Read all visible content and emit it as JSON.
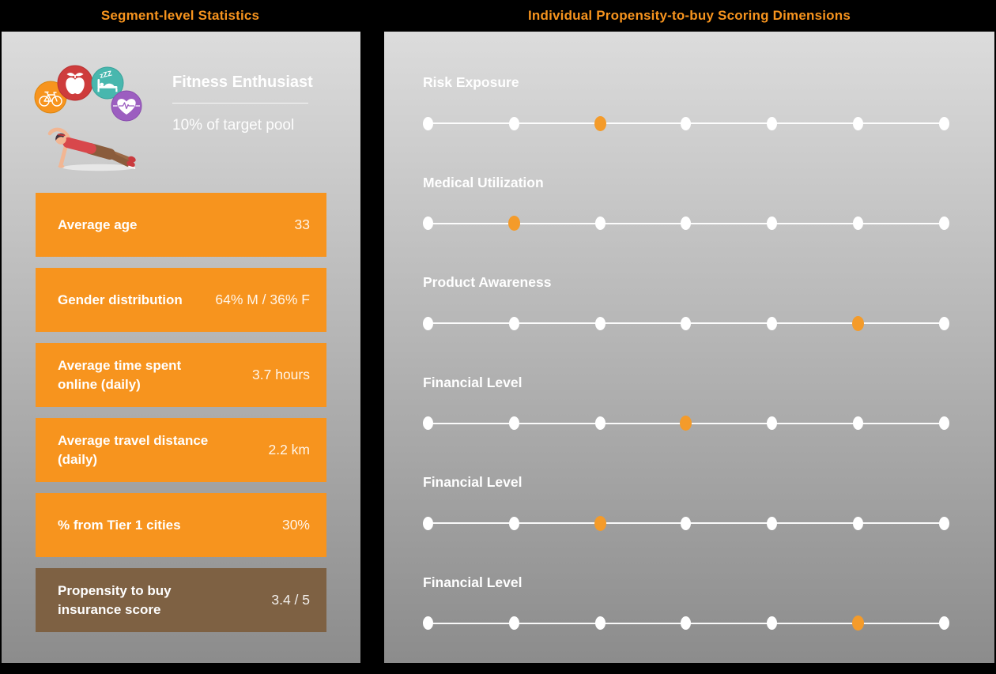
{
  "colors": {
    "accent_orange": "#F7941E",
    "dot_orange": "#F49B2A",
    "brown": "#7E6143",
    "panel_top": "#DCDCDC",
    "panel_bottom": "#8C8C8C",
    "icon_red": "#CE3C3C",
    "icon_teal": "#48B7AE",
    "icon_purple": "#9C5EC0"
  },
  "left_panel": {
    "header": "Segment-level Statistics",
    "persona": {
      "title": "Fitness Enthusiast",
      "subtitle": "10% of target pool",
      "sleep_text": "zZZ",
      "icons": [
        "bicycle-icon",
        "apple-icon",
        "sleep-icon",
        "heart-pulse-icon",
        "plank-figure"
      ]
    },
    "stats": [
      {
        "label": "Average age",
        "value": "33",
        "highlight": false
      },
      {
        "label": "Gender distribution",
        "value": "64% M / 36% F",
        "highlight": false
      },
      {
        "label": "Average time spent online (daily)",
        "value": "3.7 hours",
        "highlight": false
      },
      {
        "label": "Average travel distance (daily)",
        "value": "2.2 km",
        "highlight": false
      },
      {
        "label": "% from Tier 1 cities",
        "value": "30%",
        "highlight": false
      },
      {
        "label": "Propensity to buy insurance score",
        "value": "3.4 / 5",
        "highlight": true
      }
    ]
  },
  "right_panel": {
    "header": "Individual Propensity-to-buy Scoring Dimensions",
    "scales": [
      {
        "label": "Risk Exposure",
        "total_dots": 7,
        "active_dot": 3
      },
      {
        "label": "Medical Utilization",
        "total_dots": 7,
        "active_dot": 2
      },
      {
        "label": "Product Awareness",
        "total_dots": 7,
        "active_dot": 6
      },
      {
        "label": "Financial Level",
        "total_dots": 7,
        "active_dot": 4
      },
      {
        "label": "Financial Level",
        "total_dots": 7,
        "active_dot": 3
      },
      {
        "label": "Financial Level",
        "total_dots": 7,
        "active_dot": 6
      }
    ]
  }
}
